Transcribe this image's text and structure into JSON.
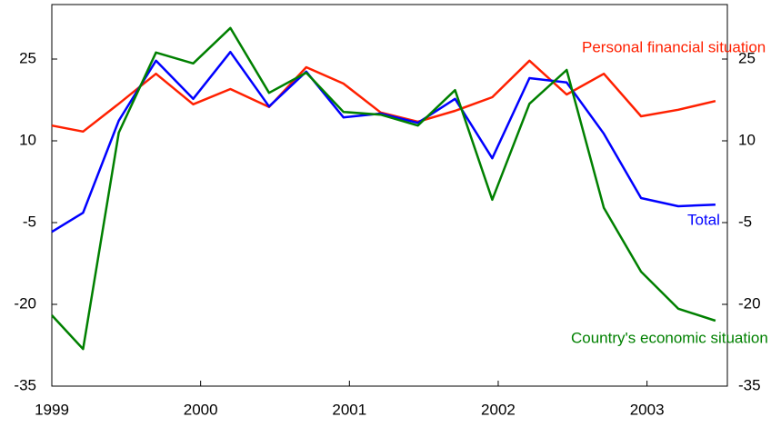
{
  "chart_data": {
    "type": "line",
    "x": [
      1999.0,
      1999.21,
      1999.45,
      1999.7,
      1999.95,
      2000.2,
      2000.46,
      2000.71,
      2000.96,
      2001.21,
      2001.46,
      2001.71,
      2001.96,
      2002.21,
      2002.46,
      2002.71,
      2002.96,
      2003.21,
      2003.46
    ],
    "series": [
      {
        "name": "Personal financial situation",
        "color": "#ff2000",
        "values": [
          12.8,
          11.7,
          16.8,
          22.3,
          16.7,
          19.5,
          16.2,
          23.5,
          20.5,
          15.2,
          13.5,
          15.5,
          18,
          24.7,
          18.5,
          22.3,
          14.5,
          15.7,
          17.3
        ]
      },
      {
        "name": "Total",
        "color": "#0000ff",
        "values": [
          -6.7,
          -3.2,
          13.7,
          24.7,
          17.7,
          26.3,
          16.3,
          22.7,
          14.3,
          15,
          13.3,
          17.7,
          6.8,
          21.5,
          20.7,
          11.3,
          -0.5,
          -2,
          -1.7
        ]
      },
      {
        "name": "Country's economic situation",
        "color": "#008000",
        "values": [
          -22,
          -28.2,
          11.5,
          26.2,
          24.2,
          30.7,
          18.8,
          22.5,
          15.3,
          14.8,
          12.8,
          19.3,
          -0.8,
          16.8,
          23,
          -2.3,
          -14,
          -20.8,
          -23
        ]
      }
    ],
    "xlim": [
      1999,
      2003.54
    ],
    "xticks": [
      1999,
      2000,
      2001,
      2002,
      2003
    ],
    "ylim": [
      -35,
      35
    ],
    "yticks": [
      -35,
      -20,
      -5,
      10,
      25
    ]
  }
}
